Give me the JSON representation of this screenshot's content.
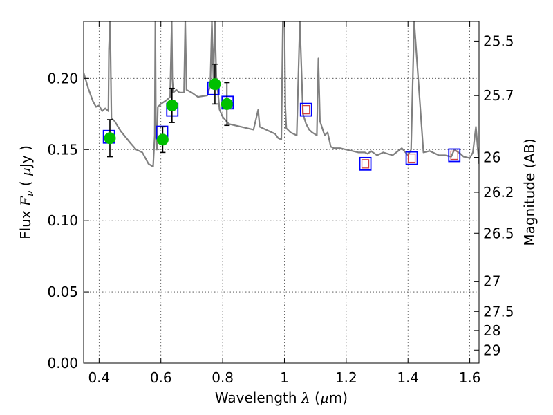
{
  "chart_data": {
    "type": "scatter",
    "xlabel": "Wavelength",
    "xlabel_symbol": "λ",
    "xlabel_unit_open": "(",
    "xlabel_unit_mu": "μ",
    "xlabel_unit_rest": "m)",
    "ylabel": "Flux",
    "ylabel_symbol_F": "F",
    "ylabel_symbol_nu": "ν",
    "ylabel_unit_open": "(",
    "ylabel_unit_mu": "μ",
    "ylabel_unit_rest": "Jy )",
    "y2label": "Magnitude (AB)",
    "xlim": [
      0.35,
      1.63
    ],
    "ylim": [
      0.0,
      0.24
    ],
    "grid": true,
    "x_ticks": [
      {
        "value": 0.4,
        "label": "0.4"
      },
      {
        "value": 0.6,
        "label": "0.6"
      },
      {
        "value": 0.8,
        "label": "0.8"
      },
      {
        "value": 1.0,
        "label": "1"
      },
      {
        "value": 1.2,
        "label": "1.2"
      },
      {
        "value": 1.4,
        "label": "1.4"
      },
      {
        "value": 1.6,
        "label": "1.6"
      }
    ],
    "y_ticks": [
      {
        "value": 0.0,
        "label": "0.00"
      },
      {
        "value": 0.05,
        "label": "0.05"
      },
      {
        "value": 0.1,
        "label": "0.10"
      },
      {
        "value": 0.15,
        "label": "0.15"
      },
      {
        "value": 0.2,
        "label": "0.20"
      }
    ],
    "mag_ticks": [
      {
        "flux": 0.2262,
        "label": "25.5"
      },
      {
        "flux": 0.1879,
        "label": "25.7"
      },
      {
        "flux": 0.1445,
        "label": "26"
      },
      {
        "flux": 0.12,
        "label": "26.2"
      },
      {
        "flux": 0.0912,
        "label": "26.5"
      },
      {
        "flux": 0.0575,
        "label": "27"
      },
      {
        "flux": 0.0363,
        "label": "27.5"
      },
      {
        "flux": 0.0229,
        "label": "28"
      },
      {
        "flux": 0.0091,
        "label": "29"
      }
    ],
    "series": [
      {
        "name": "observed photometry",
        "marker": "circle",
        "color": "#00c000",
        "points": [
          {
            "x": 0.435,
            "y": 0.158,
            "err": 0.013
          },
          {
            "x": 0.606,
            "y": 0.157,
            "err": 0.009
          },
          {
            "x": 0.636,
            "y": 0.181,
            "err": 0.012
          },
          {
            "x": 0.775,
            "y": 0.196,
            "err": 0.014
          },
          {
            "x": 0.814,
            "y": 0.182,
            "err": 0.015
          }
        ]
      },
      {
        "name": "model photometry",
        "marker": "square",
        "color": "#0000ff",
        "points": [
          {
            "x": 0.432,
            "y": 0.159
          },
          {
            "x": 0.604,
            "y": 0.162
          },
          {
            "x": 0.637,
            "y": 0.178
          },
          {
            "x": 0.77,
            "y": 0.193
          },
          {
            "x": 0.816,
            "y": 0.183
          },
          {
            "x": 1.07,
            "y": 0.178
          },
          {
            "x": 1.262,
            "y": 0.14
          },
          {
            "x": 1.412,
            "y": 0.144
          },
          {
            "x": 1.55,
            "y": 0.146
          }
        ]
      },
      {
        "name": "upper limits",
        "marker": "square",
        "color": "#d04040",
        "points": [
          {
            "x": 1.07,
            "y": 0.178
          },
          {
            "x": 1.262,
            "y": 0.14
          },
          {
            "x": 1.412,
            "y": 0.144
          },
          {
            "x": 1.55,
            "y": 0.146
          }
        ]
      },
      {
        "name": "template spectrum",
        "marker": "line",
        "color": "#808080",
        "x": [
          0.35,
          0.365,
          0.38,
          0.39,
          0.4,
          0.41,
          0.42,
          0.43,
          0.432,
          0.435,
          0.437,
          0.44,
          0.45,
          0.47,
          0.5,
          0.52,
          0.54,
          0.56,
          0.575,
          0.58,
          0.582,
          0.584,
          0.587,
          0.59,
          0.6,
          0.62,
          0.63,
          0.635,
          0.637,
          0.64,
          0.65,
          0.66,
          0.675,
          0.679,
          0.683,
          0.7,
          0.72,
          0.75,
          0.76,
          0.765,
          0.77,
          0.775,
          0.78,
          0.785,
          0.79,
          0.8,
          0.82,
          0.84,
          0.86,
          0.88,
          0.9,
          0.915,
          0.92,
          0.93,
          0.95,
          0.97,
          0.98,
          0.99,
          0.995,
          1.0,
          1.003,
          1.006,
          1.02,
          1.04,
          1.05,
          1.06,
          1.07,
          1.08,
          1.09,
          1.105,
          1.11,
          1.115,
          1.13,
          1.14,
          1.15,
          1.16,
          1.18,
          1.2,
          1.22,
          1.24,
          1.26,
          1.27,
          1.28,
          1.3,
          1.32,
          1.35,
          1.38,
          1.4,
          1.41,
          1.42,
          1.45,
          1.47,
          1.5,
          1.52,
          1.54,
          1.55,
          1.57,
          1.58,
          1.6,
          1.61,
          1.62,
          1.63
        ],
        "y": [
          0.204,
          0.193,
          0.184,
          0.18,
          0.181,
          0.177,
          0.179,
          0.177,
          0.22,
          0.24,
          0.22,
          0.172,
          0.17,
          0.163,
          0.155,
          0.15,
          0.148,
          0.14,
          0.138,
          0.16,
          0.24,
          0.16,
          0.15,
          0.18,
          0.182,
          0.185,
          0.187,
          0.24,
          0.2,
          0.19,
          0.192,
          0.19,
          0.19,
          0.24,
          0.192,
          0.19,
          0.187,
          0.188,
          0.195,
          0.24,
          0.2,
          0.24,
          0.196,
          0.19,
          0.178,
          0.173,
          0.168,
          0.167,
          0.166,
          0.165,
          0.164,
          0.178,
          0.166,
          0.165,
          0.163,
          0.161,
          0.158,
          0.157,
          0.24,
          0.24,
          0.18,
          0.165,
          0.162,
          0.16,
          0.24,
          0.175,
          0.168,
          0.164,
          0.162,
          0.16,
          0.214,
          0.17,
          0.16,
          0.162,
          0.152,
          0.151,
          0.151,
          0.15,
          0.149,
          0.148,
          0.148,
          0.147,
          0.149,
          0.146,
          0.148,
          0.146,
          0.151,
          0.146,
          0.15,
          0.24,
          0.148,
          0.149,
          0.146,
          0.146,
          0.145,
          0.15,
          0.147,
          0.145,
          0.144,
          0.148,
          0.166,
          0.14
        ]
      }
    ]
  }
}
